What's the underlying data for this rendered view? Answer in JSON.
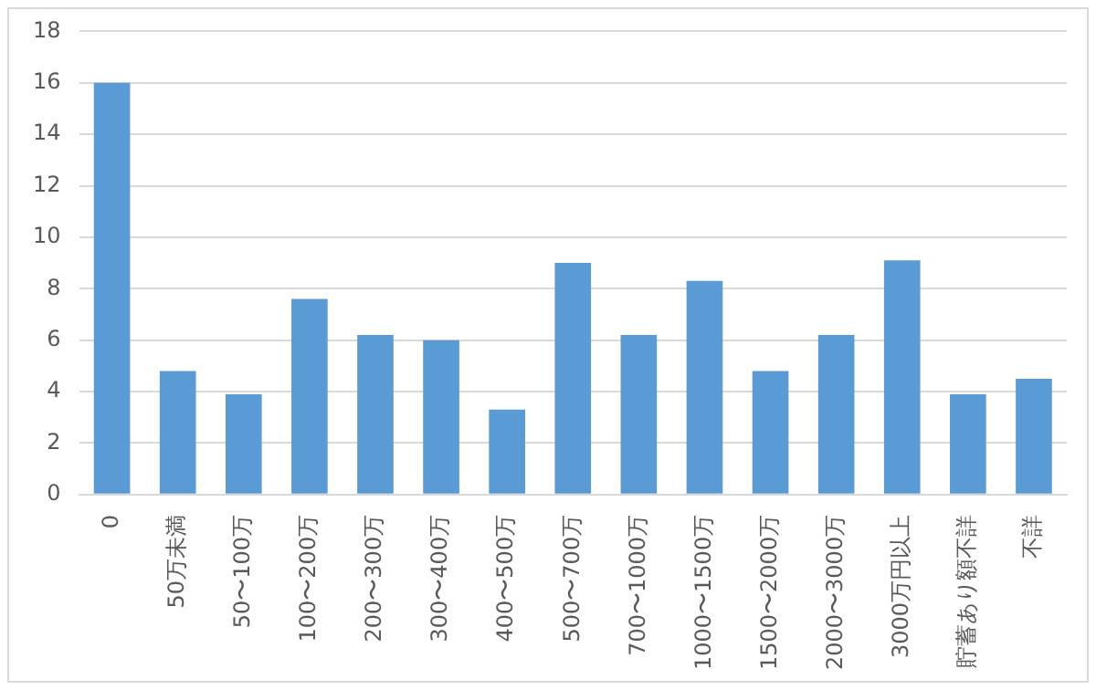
{
  "chart_data": {
    "type": "bar",
    "categories": [
      "0",
      "50万未満",
      "50〜100万",
      "100〜200万",
      "200〜300万",
      "300〜400万",
      "400〜500万",
      "500〜700万",
      "700〜1000万",
      "1000〜1500万",
      "1500〜2000万",
      "2000〜3000万",
      "3000万円以上",
      "貯蓄あり額不詳",
      "不詳"
    ],
    "values": [
      16,
      4.8,
      3.9,
      7.6,
      6.2,
      6.0,
      3.3,
      9.0,
      6.2,
      8.3,
      4.8,
      6.2,
      9.1,
      3.9,
      4.5
    ],
    "color": "#5b9bd5",
    "ylim": [
      0,
      18
    ],
    "yticks": [
      0,
      2,
      4,
      6,
      8,
      10,
      12,
      14,
      16,
      18
    ],
    "grid": "y",
    "legend": false
  }
}
